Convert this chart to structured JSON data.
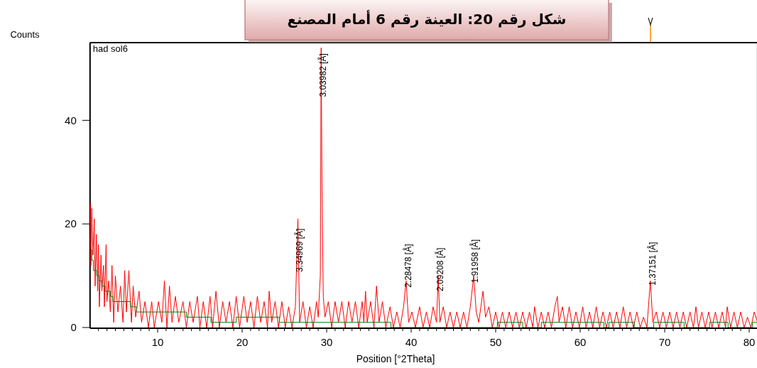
{
  "chart_data": {
    "type": "line",
    "title": "شكل رقم 20: العينة رقم 6 أمام المصنع",
    "xlabel": "Position [°2Theta]",
    "ylabel": "Counts",
    "xlim": [
      2,
      81
    ],
    "ylim": [
      0,
      55
    ],
    "xticks": [
      {
        "value": 3,
        "label": null
      },
      {
        "value": 4,
        "label": null
      },
      {
        "value": 5,
        "label": null
      },
      {
        "value": 6,
        "label": null
      },
      {
        "value": 7,
        "label": null
      },
      {
        "value": 8,
        "label": null
      },
      {
        "value": 9,
        "label": null
      },
      10,
      {
        "value": 11,
        "label": null
      },
      {
        "value": 12,
        "label": null
      },
      {
        "value": 13,
        "label": null
      },
      {
        "value": 14,
        "label": null
      },
      {
        "value": 15,
        "label": null
      },
      {
        "value": 16,
        "label": null
      },
      {
        "value": 17,
        "label": null
      },
      {
        "value": 18,
        "label": null
      },
      {
        "value": 19,
        "label": null
      },
      20,
      {
        "value": 21,
        "label": null
      },
      {
        "value": 22,
        "label": null
      },
      {
        "value": 23,
        "label": null
      },
      {
        "value": 24,
        "label": null
      },
      {
        "value": 25,
        "label": null
      },
      {
        "value": 26,
        "label": null
      },
      {
        "value": 27,
        "label": null
      },
      {
        "value": 28,
        "label": null
      },
      {
        "value": 29,
        "label": null
      },
      30,
      {
        "value": 31,
        "label": null
      },
      {
        "value": 32,
        "label": null
      },
      {
        "value": 33,
        "label": null
      },
      {
        "value": 34,
        "label": null
      },
      {
        "value": 35,
        "label": null
      },
      {
        "value": 36,
        "label": null
      },
      {
        "value": 37,
        "label": null
      },
      {
        "value": 38,
        "label": null
      },
      {
        "value": 39,
        "label": null
      },
      40,
      {
        "value": 41,
        "label": null
      },
      {
        "value": 42,
        "label": null
      },
      {
        "value": 43,
        "label": null
      },
      {
        "value": 44,
        "label": null
      },
      {
        "value": 45,
        "label": null
      },
      {
        "value": 46,
        "label": null
      },
      {
        "value": 47,
        "label": null
      },
      {
        "value": 48,
        "label": null
      },
      {
        "value": 49,
        "label": null
      },
      50,
      {
        "value": 51,
        "label": null
      },
      {
        "value": 52,
        "label": null
      },
      {
        "value": 53,
        "label": null
      },
      {
        "value": 54,
        "label": null
      },
      {
        "value": 55,
        "label": null
      },
      {
        "value": 56,
        "label": null
      },
      {
        "value": 57,
        "label": null
      },
      {
        "value": 58,
        "label": null
      },
      {
        "value": 59,
        "label": null
      },
      60,
      {
        "value": 61,
        "label": null
      },
      {
        "value": 62,
        "label": null
      },
      {
        "value": 63,
        "label": null
      },
      {
        "value": 64,
        "label": null
      },
      {
        "value": 65,
        "label": null
      },
      {
        "value": 66,
        "label": null
      },
      {
        "value": 67,
        "label": null
      },
      {
        "value": 68,
        "label": null
      },
      {
        "value": 69,
        "label": null
      },
      70,
      {
        "value": 71,
        "label": null
      },
      {
        "value": 72,
        "label": null
      },
      {
        "value": 73,
        "label": null
      },
      {
        "value": 74,
        "label": null
      },
      {
        "value": 75,
        "label": null
      },
      {
        "value": 76,
        "label": null
      },
      {
        "value": 77,
        "label": null
      },
      {
        "value": 78,
        "label": null
      },
      {
        "value": 79,
        "label": null
      },
      80
    ],
    "yticks": [
      0,
      20,
      40
    ],
    "series": [
      {
        "type": "line",
        "color": "#ff0000",
        "x": [
          2.0,
          2.05,
          2.1,
          2.2,
          2.35,
          2.5,
          2.6,
          2.75,
          2.9,
          3.0,
          3.1,
          3.3,
          3.4,
          3.6,
          3.7,
          3.9,
          4.0,
          4.2,
          4.4,
          4.6,
          4.8,
          5.0,
          5.3,
          5.6,
          5.9,
          6.1,
          6.3,
          6.6,
          6.9,
          7.1,
          7.4,
          7.8,
          8.1,
          8.5,
          8.9,
          9.3,
          9.6,
          10.1,
          10.5,
          10.8,
          11.1,
          11.4,
          11.7,
          12.1,
          12.5,
          13.0,
          13.4,
          13.8,
          14.2,
          14.7,
          15.0,
          15.4,
          15.8,
          16.2,
          16.5,
          16.9,
          17.3,
          17.7,
          18.1,
          18.5,
          18.9,
          19.3,
          19.7,
          20.2,
          20.6,
          21.0,
          21.4,
          21.8,
          22.2,
          22.6,
          23.0,
          23.2,
          23.5,
          23.9,
          24.3,
          24.7,
          25.1,
          25.5,
          25.9,
          26.3,
          26.6,
          26.8,
          27.2,
          27.6,
          28.0,
          28.4,
          28.8,
          29.0,
          29.25,
          29.35,
          29.45,
          29.6,
          29.8,
          30.2,
          30.6,
          31.0,
          31.4,
          31.8,
          32.2,
          32.6,
          33.0,
          33.4,
          33.8,
          34.2,
          34.4,
          34.6,
          34.8,
          35.2,
          35.6,
          35.9,
          36.2,
          36.6,
          37.0,
          37.5,
          37.9,
          38.3,
          38.7,
          39.1,
          39.4,
          39.7,
          40.1,
          40.5,
          41.0,
          41.4,
          41.8,
          42.2,
          42.6,
          43.0,
          43.2,
          43.4,
          43.8,
          44.2,
          44.6,
          45.0,
          45.4,
          45.8,
          46.2,
          46.6,
          47.0,
          47.4,
          47.7,
          48.0,
          48.5,
          48.8,
          49.2,
          49.6,
          50.0,
          50.4,
          50.8,
          51.2,
          51.6,
          52.0,
          52.4,
          52.8,
          53.2,
          53.6,
          54.0,
          54.4,
          54.6,
          55.0,
          55.4,
          55.8,
          56.2,
          56.6,
          57.0,
          57.3,
          57.5,
          57.9,
          58.3,
          58.7,
          59.1,
          59.5,
          59.9,
          60.3,
          60.7,
          61.1,
          61.5,
          61.9,
          62.3,
          62.7,
          63.1,
          63.5,
          63.9,
          64.3,
          64.7,
          65.1,
          65.5,
          65.9,
          66.3,
          66.7,
          67.1,
          67.5,
          67.9,
          68.3,
          68.6,
          69.0,
          69.4,
          69.8,
          70.2,
          70.6,
          71.0,
          71.4,
          71.8,
          72.2,
          72.6,
          73.0,
          73.4,
          73.7,
          74.0,
          74.4,
          74.8,
          75.2,
          75.6,
          76.0,
          76.4,
          76.8,
          77.2,
          77.4,
          77.8,
          78.2,
          78.6,
          79.0,
          79.4,
          79.8,
          80.2,
          80.6,
          81.0
        ],
        "values": [
          20,
          24,
          12,
          23,
          14,
          21,
          8,
          18,
          7,
          16,
          4,
          14,
          7,
          12,
          4,
          16,
          5,
          9,
          3,
          12,
          1,
          10,
          3,
          8,
          1,
          11,
          3,
          11,
          1,
          8,
          2,
          7,
          1,
          5,
          0,
          5,
          0,
          5,
          1,
          9,
          0,
          8,
          1,
          6,
          1,
          5,
          0,
          5,
          1,
          6,
          0,
          5,
          0,
          6,
          0,
          7,
          0,
          5,
          1,
          5,
          0,
          6,
          0,
          6,
          1,
          5,
          0,
          6,
          1,
          5,
          0,
          7,
          1,
          5,
          0,
          5,
          0,
          4,
          0,
          4,
          21,
          1,
          5,
          0,
          4,
          0,
          5,
          2,
          10,
          54,
          27,
          6,
          2,
          5,
          0,
          5,
          1,
          5,
          0,
          5,
          1,
          5,
          0,
          5,
          1,
          7,
          1,
          5,
          0,
          8,
          1,
          5,
          0,
          4,
          0,
          3,
          0,
          4,
          9,
          1,
          3,
          0,
          4,
          0,
          3,
          0,
          4,
          1,
          10,
          1,
          4,
          0,
          3,
          0,
          3,
          0,
          3,
          0,
          4,
          10,
          3,
          1,
          7,
          2,
          4,
          0,
          3,
          0,
          3,
          0,
          3,
          0,
          3,
          0,
          3,
          0,
          3,
          0,
          4,
          0,
          3,
          0,
          3,
          0,
          4,
          6,
          1,
          4,
          0,
          4,
          0,
          3,
          0,
          4,
          0,
          3,
          0,
          4,
          0,
          3,
          0,
          3,
          0,
          3,
          0,
          4,
          0,
          3,
          0,
          3,
          0,
          2,
          0,
          9,
          1,
          3,
          0,
          3,
          0,
          3,
          0,
          3,
          0,
          3,
          0,
          3,
          0,
          4,
          0,
          3,
          0,
          3,
          0,
          3,
          0,
          3,
          0,
          4,
          0,
          3,
          0,
          3,
          0,
          2,
          0,
          3,
          1
        ]
      },
      {
        "type": "step",
        "color": "#008000",
        "x": [
          2.0,
          2.2,
          2.4,
          2.8,
          3.1,
          3.4,
          3.8,
          4.4,
          4.7,
          6.8,
          7.5,
          13.4,
          16.3,
          19.3,
          24.4,
          37.6,
          50.2,
          53.2,
          55.4,
          62.8,
          63.4,
          66.4,
          68.7,
          72.3,
          75.3,
          77.5,
          80.4,
          81
        ],
        "values": [
          15,
          13,
          11,
          10,
          9,
          8,
          7,
          6,
          5,
          4,
          3,
          2,
          1,
          2,
          1,
          0,
          1,
          0,
          1,
          0,
          1,
          0,
          1,
          0,
          1,
          0,
          1,
          1
        ]
      }
    ],
    "annotations": [
      "had sol6",
      {
        "text": "3.34969 [Å]",
        "x": 26.59,
        "y": 10.7
      },
      {
        "text": "3.03982 [Å]",
        "x": 29.36,
        "y": 44.5
      },
      {
        "text": "2.28478 [Å]",
        "x": 39.41,
        "y": 7.7
      },
      {
        "text": "2.09208 [Å]",
        "x": 43.21,
        "y": 7
      },
      {
        "text": "1.91958 [Å]",
        "x": 47.32,
        "y": 8.6
      },
      {
        "text": "1.37151 [Å]",
        "x": 68.34,
        "y": 8.1
      }
    ]
  }
}
